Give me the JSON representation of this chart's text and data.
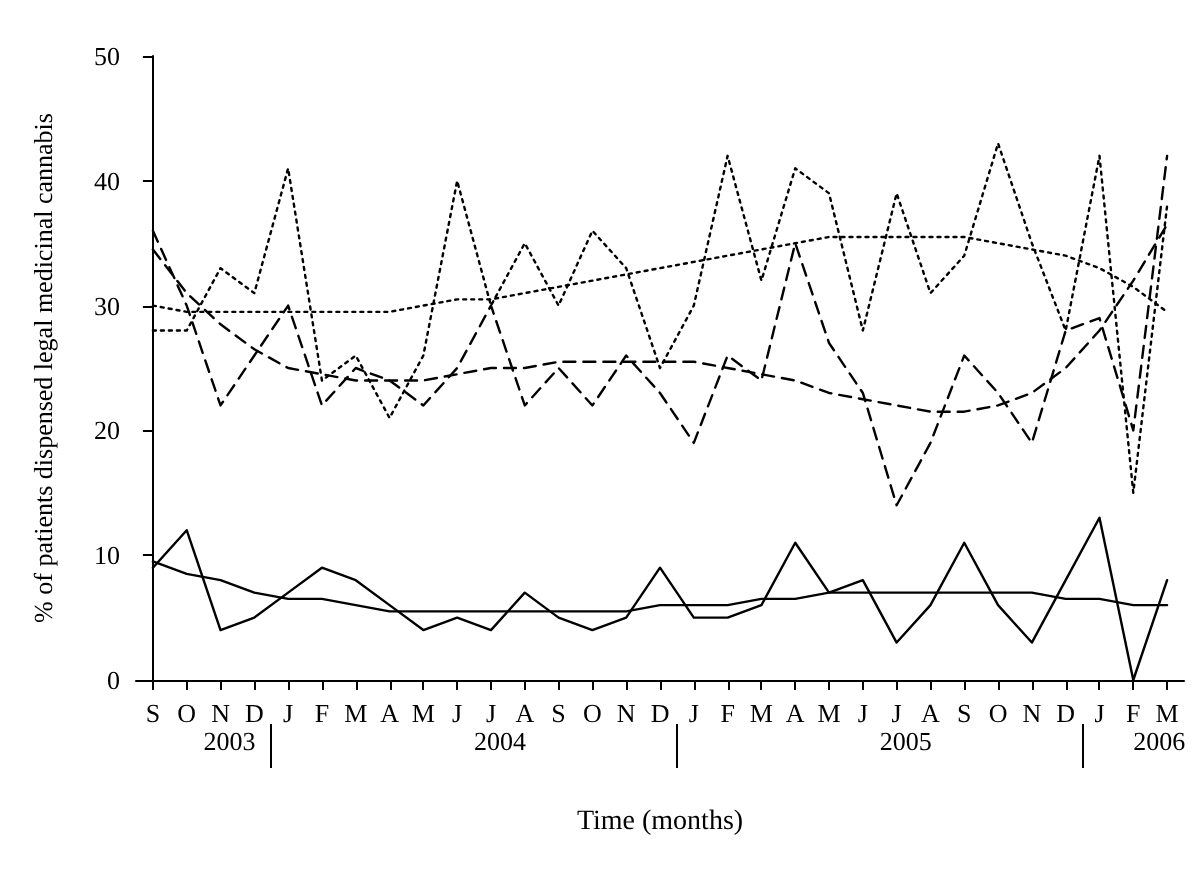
{
  "chart_data": {
    "type": "line",
    "categories": [
      "S",
      "O",
      "N",
      "D",
      "J",
      "F",
      "M",
      "A",
      "M",
      "J",
      "J",
      "A",
      "S",
      "O",
      "N",
      "D",
      "J",
      "F",
      "M",
      "A",
      "M",
      "J",
      "J",
      "A",
      "S",
      "O",
      "N",
      "D",
      "J",
      "F",
      "M"
    ],
    "series": [
      {
        "color": "#000000",
        "line_style": "solid",
        "values": [
          9,
          12,
          4,
          5,
          7,
          9,
          8,
          6,
          4,
          5,
          4,
          7,
          5,
          4,
          5,
          9,
          5,
          5,
          6,
          11,
          7,
          8,
          3,
          6,
          11,
          6,
          3,
          8,
          13,
          0,
          8
        ]
      },
      {
        "color": "#000000",
        "line_style": "dashed",
        "values": [
          36,
          30,
          22,
          26,
          30,
          22,
          25,
          24,
          22,
          25,
          30,
          22,
          25,
          22,
          26,
          23,
          19,
          26,
          24,
          35,
          27,
          23,
          14,
          19,
          26,
          23,
          19,
          28,
          29,
          20,
          42
        ]
      },
      {
        "color": "#000000",
        "line_style": "dotted",
        "values": [
          28,
          28,
          33,
          31,
          41,
          24,
          26,
          21,
          26,
          40,
          30,
          35,
          30,
          36,
          33,
          25,
          30,
          42,
          32,
          41,
          39,
          28,
          39,
          31,
          34,
          43,
          35,
          28,
          42,
          15,
          38
        ]
      },
      {
        "color": "#000000",
        "line_style": "solid",
        "values": [
          9.5,
          8.5,
          8,
          7,
          6.5,
          6.5,
          6,
          5.5,
          5.5,
          5.5,
          5.5,
          5.5,
          5.5,
          5.5,
          5.5,
          6,
          6,
          6,
          6.5,
          6.5,
          7,
          7,
          7,
          7,
          7,
          7,
          7,
          6.5,
          6.5,
          6,
          6
        ]
      },
      {
        "color": "#000000",
        "line_style": "dashed",
        "values": [
          34.5,
          31,
          28.5,
          26.5,
          25,
          24.5,
          24,
          24,
          24,
          24.5,
          25,
          25,
          25.5,
          25.5,
          25.5,
          25.5,
          25.5,
          25,
          24.5,
          24,
          23,
          22.5,
          22,
          21.5,
          21.5,
          22,
          23,
          25,
          28,
          32,
          36.5
        ]
      },
      {
        "color": "#000000",
        "line_style": "dotted",
        "values": [
          30,
          29.5,
          29.5,
          29.5,
          29.5,
          29.5,
          29.5,
          29.5,
          30,
          30.5,
          30.5,
          31,
          31.5,
          32,
          32.5,
          33,
          33.5,
          34,
          34.5,
          35,
          35.5,
          35.5,
          35.5,
          35.5,
          35.5,
          35,
          34.5,
          34,
          33,
          31.5,
          29.5
        ]
      }
    ],
    "xlabel": "Time (months)",
    "ylabel": "% of patients dispensed legal medicinal cannabis",
    "annotations": [
      "2003",
      "2004",
      "2005",
      "2006"
    ],
    "ylim": [
      0,
      50
    ],
    "yticks": [
      0,
      10,
      20,
      30,
      40,
      50
    ],
    "grid": false,
    "marker": "none"
  }
}
